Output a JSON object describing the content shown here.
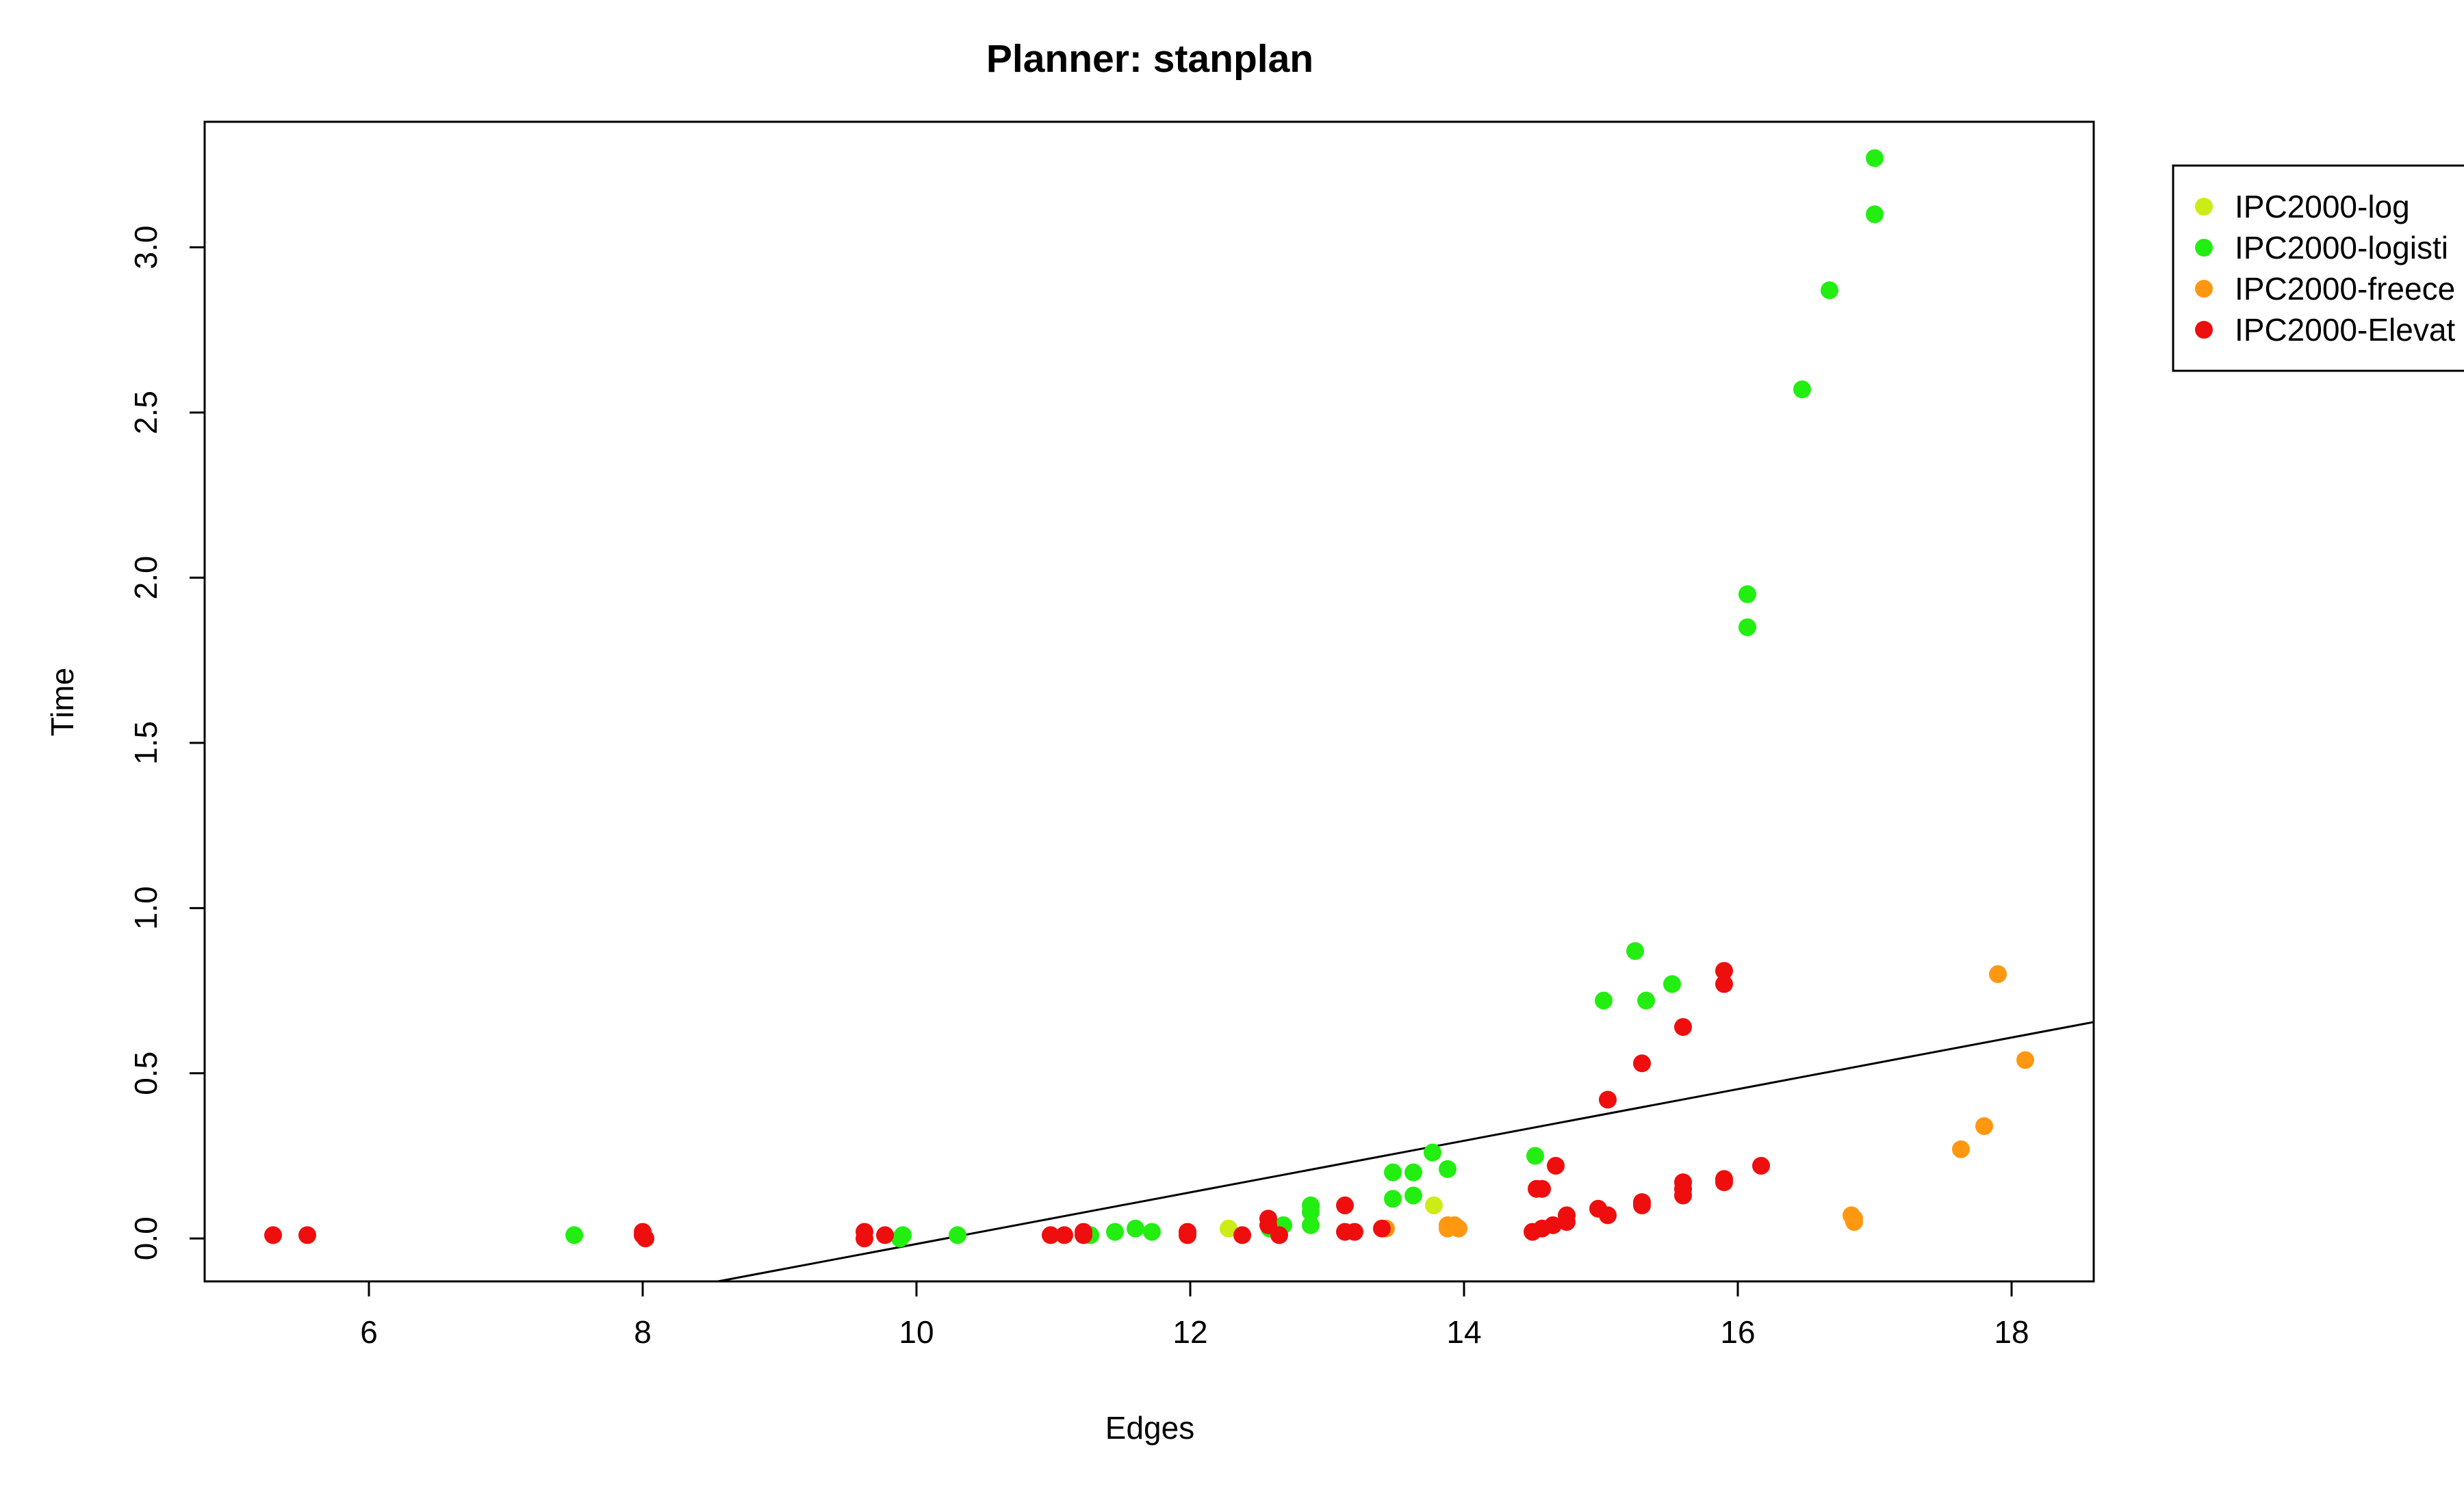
{
  "chart_data": {
    "type": "scatter",
    "title": "Planner: stanplan",
    "xlabel": "Edges",
    "ylabel": "Time",
    "xlim": [
      4.8,
      18.6
    ],
    "ylim": [
      -0.13,
      3.38
    ],
    "xticks": [
      6,
      8,
      10,
      12,
      14,
      16,
      18
    ],
    "yticks": [
      0.0,
      0.5,
      1.0,
      1.5,
      2.0,
      2.5,
      3.0
    ],
    "xtick_labels": [
      "6",
      "8",
      "10",
      "12",
      "14",
      "16",
      "18"
    ],
    "ytick_labels": [
      "0.0",
      "0.5",
      "1.0",
      "1.5",
      "2.0",
      "2.5",
      "3.0"
    ],
    "grid": false,
    "legend_position": "top-right, outside plot area",
    "fit_line": {
      "points": [
        [
          8.55,
          -0.13
        ],
        [
          18.6,
          0.655
        ]
      ]
    },
    "series": [
      {
        "name": "IPC2000-log",
        "color": "#cdeb14",
        "points": [
          [
            12.28,
            0.03
          ],
          [
            13.78,
            0.1
          ]
        ]
      },
      {
        "name": "IPC2000-logisti",
        "color": "#22ee11",
        "points": [
          [
            7.5,
            0.01
          ],
          [
            9.88,
            0.0
          ],
          [
            9.9,
            0.01
          ],
          [
            10.3,
            0.01
          ],
          [
            11.27,
            0.01
          ],
          [
            11.45,
            0.02
          ],
          [
            11.6,
            0.03
          ],
          [
            11.72,
            0.02
          ],
          [
            12.58,
            0.03
          ],
          [
            12.68,
            0.04
          ],
          [
            12.88,
            0.04
          ],
          [
            12.88,
            0.08
          ],
          [
            12.88,
            0.1
          ],
          [
            13.48,
            0.12
          ],
          [
            13.48,
            0.2
          ],
          [
            13.63,
            0.13
          ],
          [
            13.63,
            0.2
          ],
          [
            13.77,
            0.26
          ],
          [
            13.88,
            0.21
          ],
          [
            14.52,
            0.25
          ],
          [
            15.02,
            0.72
          ],
          [
            15.25,
            0.87
          ],
          [
            15.33,
            0.72
          ],
          [
            15.52,
            0.77
          ],
          [
            16.07,
            1.95
          ],
          [
            16.07,
            1.85
          ],
          [
            16.47,
            2.57
          ],
          [
            16.67,
            2.87
          ],
          [
            17.0,
            3.27
          ],
          [
            17.0,
            3.1
          ]
        ]
      },
      {
        "name": "IPC2000-freece",
        "color": "#ff9711",
        "points": [
          [
            13.43,
            0.03
          ],
          [
            13.88,
            0.04
          ],
          [
            13.93,
            0.04
          ],
          [
            13.96,
            0.03
          ],
          [
            13.88,
            0.03
          ],
          [
            16.83,
            0.07
          ],
          [
            16.85,
            0.06
          ],
          [
            16.85,
            0.05
          ],
          [
            17.63,
            0.27
          ],
          [
            17.8,
            0.34
          ],
          [
            17.9,
            0.8
          ],
          [
            18.1,
            0.54
          ]
        ]
      },
      {
        "name": "IPC2000-Elevat",
        "color": "#ee0e0e",
        "points": [
          [
            5.3,
            0.01
          ],
          [
            5.55,
            0.01
          ],
          [
            8.0,
            0.02
          ],
          [
            8.02,
            0.0
          ],
          [
            8.0,
            0.01
          ],
          [
            9.62,
            0.02
          ],
          [
            9.62,
            0.0
          ],
          [
            9.77,
            0.01
          ],
          [
            10.98,
            0.01
          ],
          [
            11.08,
            0.01
          ],
          [
            11.22,
            0.02
          ],
          [
            11.22,
            0.01
          ],
          [
            11.98,
            0.02
          ],
          [
            11.98,
            0.01
          ],
          [
            12.38,
            0.01
          ],
          [
            12.57,
            0.06
          ],
          [
            12.57,
            0.04
          ],
          [
            12.65,
            0.01
          ],
          [
            13.13,
            0.02
          ],
          [
            13.13,
            0.1
          ],
          [
            13.2,
            0.02
          ],
          [
            13.4,
            0.03
          ],
          [
            14.5,
            0.02
          ],
          [
            14.53,
            0.15
          ],
          [
            14.57,
            0.15
          ],
          [
            14.57,
            0.03
          ],
          [
            14.65,
            0.04
          ],
          [
            14.67,
            0.22
          ],
          [
            14.75,
            0.07
          ],
          [
            14.75,
            0.05
          ],
          [
            14.98,
            0.09
          ],
          [
            15.05,
            0.07
          ],
          [
            15.05,
            0.42
          ],
          [
            15.3,
            0.11
          ],
          [
            15.3,
            0.1
          ],
          [
            15.3,
            0.53
          ],
          [
            15.6,
            0.64
          ],
          [
            15.6,
            0.17
          ],
          [
            15.6,
            0.15
          ],
          [
            15.6,
            0.13
          ],
          [
            15.9,
            0.18
          ],
          [
            15.9,
            0.17
          ],
          [
            15.9,
            0.81
          ],
          [
            15.9,
            0.77
          ],
          [
            16.17,
            0.22
          ]
        ]
      }
    ]
  }
}
